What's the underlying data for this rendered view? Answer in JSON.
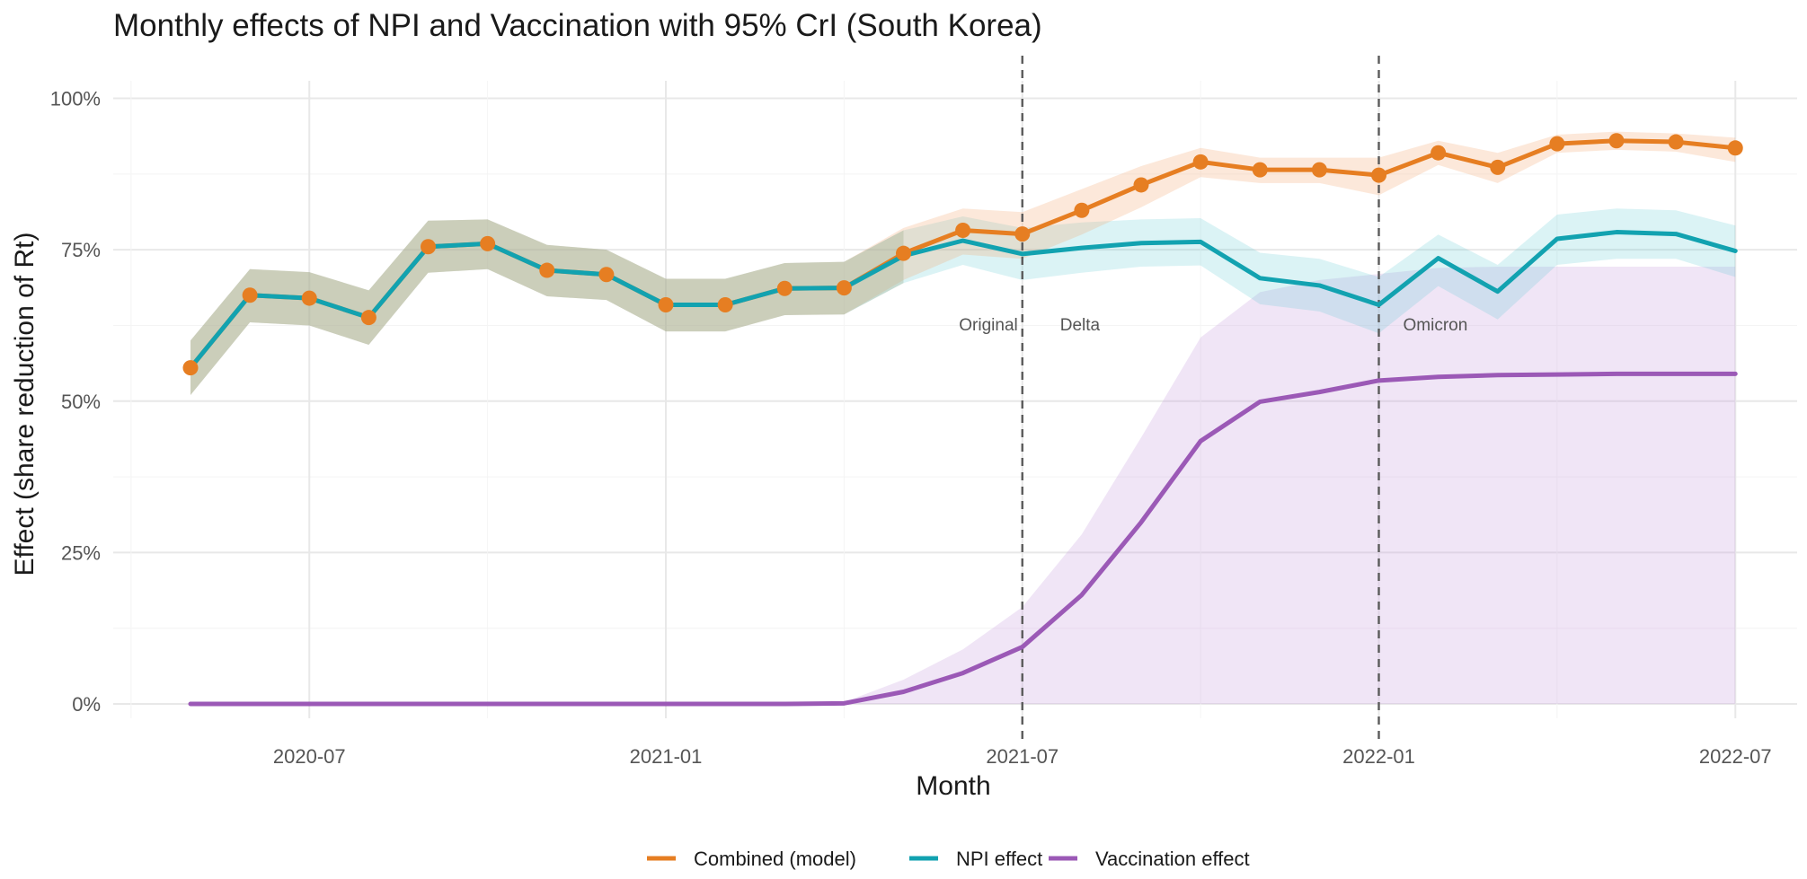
{
  "chart_data": {
    "type": "line",
    "title": "Monthly effects of NPI and Vaccination with 95% CrI (South Korea)",
    "xlabel": "Month",
    "ylabel": "Effect (share reduction of Rt)",
    "x": [
      "2020-05",
      "2020-06",
      "2020-07",
      "2020-08",
      "2020-09",
      "2020-10",
      "2020-11",
      "2020-12",
      "2021-01",
      "2021-02",
      "2021-03",
      "2021-04",
      "2021-05",
      "2021-06",
      "2021-07",
      "2021-08",
      "2021-09",
      "2021-10",
      "2021-11",
      "2021-12",
      "2022-01",
      "2022-02",
      "2022-03",
      "2022-04",
      "2022-05",
      "2022-06",
      "2022-07"
    ],
    "x_ticks": [
      "2020-07",
      "2021-01",
      "2021-07",
      "2022-01",
      "2022-07"
    ],
    "ylim": [
      0,
      1
    ],
    "y_ticks": [
      0,
      0.25,
      0.5,
      0.75,
      1.0
    ],
    "y_tick_labels": [
      "0%",
      "25%",
      "50%",
      "75%",
      "100%"
    ],
    "series": [
      {
        "name": "Combined (model)",
        "color": "#E67E22",
        "values": [
          0.555,
          0.675,
          0.67,
          0.638,
          0.755,
          0.76,
          0.716,
          0.709,
          0.659,
          0.659,
          0.686,
          0.687,
          0.744,
          0.782,
          0.776,
          0.815,
          0.857,
          0.895,
          0.882,
          0.882,
          0.873,
          0.91,
          0.886,
          0.925,
          0.93,
          0.928,
          0.918
        ],
        "lower": [
          0.51,
          0.63,
          0.625,
          0.593,
          0.712,
          0.718,
          0.673,
          0.667,
          0.615,
          0.615,
          0.642,
          0.643,
          0.7,
          0.742,
          0.735,
          0.775,
          0.82,
          0.87,
          0.86,
          0.86,
          0.84,
          0.89,
          0.86,
          0.91,
          0.915,
          0.912,
          0.895
        ],
        "upper": [
          0.6,
          0.718,
          0.713,
          0.683,
          0.798,
          0.8,
          0.758,
          0.75,
          0.702,
          0.702,
          0.728,
          0.73,
          0.786,
          0.818,
          0.812,
          0.85,
          0.888,
          0.918,
          0.902,
          0.902,
          0.902,
          0.93,
          0.91,
          0.94,
          0.945,
          0.942,
          0.935
        ],
        "markers": true
      },
      {
        "name": "NPI effect",
        "color": "#12A2B0",
        "values": [
          0.555,
          0.675,
          0.67,
          0.638,
          0.755,
          0.76,
          0.716,
          0.709,
          0.659,
          0.659,
          0.686,
          0.687,
          0.74,
          0.765,
          0.743,
          0.753,
          0.761,
          0.763,
          0.703,
          0.691,
          0.659,
          0.736,
          0.681,
          0.768,
          0.779,
          0.776,
          0.748
        ],
        "lower": [
          0.51,
          0.63,
          0.625,
          0.593,
          0.712,
          0.718,
          0.673,
          0.667,
          0.615,
          0.615,
          0.642,
          0.643,
          0.695,
          0.725,
          0.7,
          0.712,
          0.722,
          0.724,
          0.66,
          0.648,
          0.612,
          0.69,
          0.635,
          0.725,
          0.735,
          0.735,
          0.705
        ],
        "upper": [
          0.6,
          0.718,
          0.713,
          0.683,
          0.798,
          0.8,
          0.758,
          0.75,
          0.702,
          0.702,
          0.728,
          0.73,
          0.782,
          0.805,
          0.786,
          0.795,
          0.8,
          0.802,
          0.745,
          0.735,
          0.705,
          0.775,
          0.725,
          0.808,
          0.818,
          0.815,
          0.79
        ],
        "markers": false
      },
      {
        "name": "Vaccination effect",
        "color": "#9B59B6",
        "values": [
          0,
          0,
          0,
          0,
          0,
          0,
          0,
          0,
          0,
          0,
          0,
          0.001,
          0.02,
          0.051,
          0.094,
          0.18,
          0.3,
          0.434,
          0.499,
          0.515,
          0.534,
          0.54,
          0.543,
          0.544,
          0.545,
          0.545,
          0.545
        ],
        "lower": [
          0,
          0,
          0,
          0,
          0,
          0,
          0,
          0,
          0,
          0,
          0,
          0,
          0,
          0,
          0,
          0,
          0,
          0,
          0,
          0,
          0,
          0,
          0,
          0,
          0,
          0,
          0
        ],
        "upper": [
          0,
          0,
          0,
          0,
          0,
          0,
          0,
          0,
          0,
          0,
          0,
          0.003,
          0.04,
          0.09,
          0.16,
          0.28,
          0.44,
          0.605,
          0.68,
          0.7,
          0.71,
          0.72,
          0.722,
          0.722,
          0.722,
          0.722,
          0.722
        ],
        "markers": false
      }
    ],
    "vlines": [
      {
        "x": "2021-07",
        "left_label": "Original",
        "right_label": "Delta"
      },
      {
        "x": "2022-01",
        "left_label": "",
        "right_label": "Omicron"
      }
    ],
    "legend": {
      "position": "bottom",
      "entries": [
        "Combined (model)",
        "NPI effect",
        "Vaccination effect"
      ]
    }
  }
}
